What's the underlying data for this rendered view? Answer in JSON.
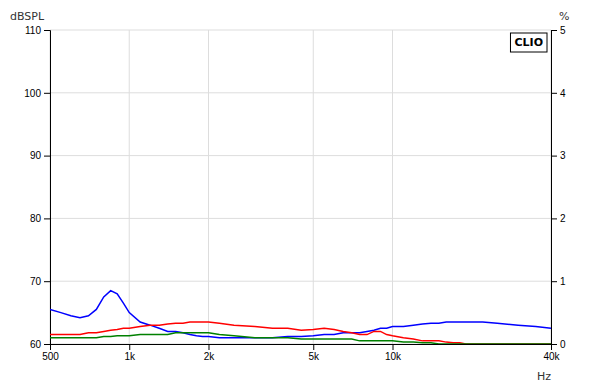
{
  "chart_data": {
    "type": "line",
    "xlabel": "Hz",
    "ylabel": "dBSPL",
    "y2label": "%",
    "annotation": "CLIO",
    "log": "x",
    "grid": true,
    "xlim": [
      500,
      40000
    ],
    "xticks": [
      500,
      {
        "value": 1000,
        "label": "1k"
      },
      {
        "value": 2000,
        "label": "2k"
      },
      {
        "value": 5000,
        "label": "5k"
      },
      {
        "value": 10000,
        "label": "10k"
      },
      {
        "value": 40000,
        "label": "40k"
      }
    ],
    "ylim": [
      60,
      110
    ],
    "yticks": [
      60,
      70,
      80,
      90,
      100,
      110
    ],
    "y2lim": [
      0,
      5
    ],
    "y2ticks": [
      0,
      1,
      2,
      3,
      4,
      5
    ],
    "series": [
      {
        "color": "#0000ff",
        "x": [
          500,
          550,
          600,
          650,
          700,
          750,
          800,
          850,
          900,
          950,
          1000,
          1100,
          1200,
          1300,
          1400,
          1500,
          1600,
          1700,
          1800,
          1900,
          2000,
          2200,
          2500,
          3000,
          3500,
          4000,
          4500,
          5000,
          5500,
          6000,
          6500,
          7000,
          7500,
          8000,
          8500,
          9000,
          9500,
          10000,
          11000,
          12000,
          13000,
          14000,
          15000,
          16000,
          17000,
          18000,
          19000,
          20000,
          22000,
          25000,
          30000,
          35000,
          40000
        ],
        "values": [
          65.5,
          65.0,
          64.5,
          64.2,
          64.5,
          65.5,
          67.5,
          68.5,
          68.0,
          66.5,
          65.0,
          63.5,
          63.0,
          62.5,
          62.0,
          62.0,
          61.8,
          61.5,
          61.3,
          61.2,
          61.2,
          61.0,
          61.0,
          61.0,
          61.0,
          61.2,
          61.2,
          61.3,
          61.5,
          61.5,
          61.8,
          61.8,
          61.8,
          62.0,
          62.2,
          62.5,
          62.5,
          62.8,
          62.8,
          63.0,
          63.2,
          63.3,
          63.3,
          63.5,
          63.5,
          63.5,
          63.5,
          63.5,
          63.5,
          63.3,
          63.0,
          62.8,
          62.5
        ]
      },
      {
        "color": "#ff0000",
        "x": [
          500,
          550,
          600,
          650,
          700,
          750,
          800,
          850,
          900,
          950,
          1000,
          1100,
          1200,
          1300,
          1400,
          1500,
          1600,
          1700,
          1800,
          1900,
          2000,
          2200,
          2500,
          3000,
          3500,
          4000,
          4500,
          5000,
          5500,
          6000,
          6500,
          7000,
          7500,
          8000,
          8500,
          9000,
          9500,
          10000,
          11000,
          12000,
          13000,
          14000,
          15000,
          16000,
          17000,
          18000,
          19000,
          20000,
          25000,
          30000,
          35000,
          40000
        ],
        "values": [
          61.5,
          61.5,
          61.5,
          61.5,
          61.8,
          61.8,
          62.0,
          62.2,
          62.3,
          62.5,
          62.5,
          62.8,
          63.0,
          63.0,
          63.2,
          63.3,
          63.3,
          63.5,
          63.5,
          63.5,
          63.5,
          63.3,
          63.0,
          62.8,
          62.5,
          62.5,
          62.2,
          62.3,
          62.5,
          62.3,
          62.0,
          61.8,
          61.5,
          61.5,
          62.0,
          62.0,
          61.5,
          61.3,
          61.0,
          60.8,
          60.5,
          60.5,
          60.5,
          60.3,
          60.2,
          60.2,
          60.0,
          60.0,
          60.0,
          60.0,
          60.0,
          60.0
        ]
      },
      {
        "color": "#008000",
        "x": [
          500,
          550,
          600,
          650,
          700,
          750,
          800,
          850,
          900,
          950,
          1000,
          1100,
          1200,
          1300,
          1400,
          1500,
          1600,
          1700,
          1800,
          1900,
          2000,
          2200,
          2500,
          3000,
          3500,
          4000,
          4500,
          5000,
          5500,
          6000,
          6500,
          7000,
          7500,
          8000,
          8500,
          9000,
          9500,
          10000,
          11000,
          12000,
          13000,
          14000,
          15000,
          16000,
          20000,
          25000,
          30000,
          35000,
          40000
        ],
        "values": [
          61.0,
          61.0,
          61.0,
          61.0,
          61.0,
          61.0,
          61.2,
          61.2,
          61.3,
          61.3,
          61.3,
          61.5,
          61.5,
          61.5,
          61.5,
          61.8,
          61.8,
          61.8,
          61.8,
          61.8,
          61.8,
          61.5,
          61.3,
          61.0,
          61.0,
          61.0,
          60.8,
          60.8,
          60.8,
          60.8,
          60.8,
          60.8,
          60.5,
          60.5,
          60.5,
          60.5,
          60.5,
          60.5,
          60.3,
          60.3,
          60.2,
          60.2,
          60.0,
          60.0,
          60.0,
          60.0,
          60.0,
          60.0,
          60.0
        ]
      }
    ]
  }
}
